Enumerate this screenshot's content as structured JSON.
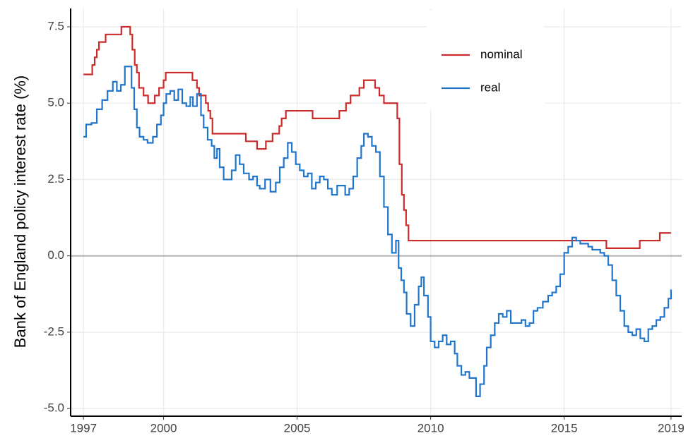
{
  "chart_data": {
    "type": "line",
    "step": true,
    "y_label": "Bank of England policy interest rate (%)",
    "xlim": [
      1996.52,
      2019.4
    ],
    "xticks": [
      1997,
      2000,
      2005,
      2010,
      2015,
      2019
    ],
    "ylim": [
      -5.25,
      8.1
    ],
    "yticks": [
      {
        "value": -5,
        "label": "-5.0"
      },
      {
        "value": -2.5,
        "label": "-2.5"
      },
      {
        "value": 0,
        "label": "0.0"
      },
      {
        "value": 2.5,
        "label": "2.5"
      },
      {
        "value": 5,
        "label": "5.0"
      },
      {
        "value": 7.5,
        "label": "7.5"
      }
    ],
    "grid": true,
    "reference_line": 0,
    "legend": "top-right",
    "series": [
      {
        "name": "nominal",
        "color": "#cc2b2b",
        "x": [
          1997.0,
          1997.33,
          1997.42,
          1997.5,
          1997.58,
          1997.83,
          1998.42,
          1998.75,
          1998.83,
          1998.92,
          1999.0,
          1999.08,
          1999.25,
          1999.42,
          1999.67,
          1999.83,
          2000.0,
          2000.08,
          2001.08,
          2001.25,
          2001.33,
          2001.58,
          2001.67,
          2001.75,
          2001.83,
          2003.08,
          2003.5,
          2003.83,
          2004.08,
          2004.33,
          2004.42,
          2004.58,
          2005.58,
          2006.58,
          2006.83,
          2007.0,
          2007.33,
          2007.5,
          2007.92,
          2008.08,
          2008.25,
          2008.75,
          2008.83,
          2008.92,
          2009.0,
          2009.08,
          2009.17,
          2016.58,
          2017.83,
          2018.58,
          2019.0
        ],
        "values": [
          5.94,
          6.25,
          6.5,
          6.75,
          7.0,
          7.25,
          7.5,
          7.25,
          6.75,
          6.25,
          6.0,
          5.5,
          5.25,
          5.0,
          5.25,
          5.5,
          5.75,
          6.0,
          5.75,
          5.5,
          5.25,
          5.0,
          4.75,
          4.5,
          4.0,
          3.75,
          3.5,
          3.75,
          4.0,
          4.25,
          4.5,
          4.75,
          4.5,
          4.75,
          5.0,
          5.25,
          5.5,
          5.75,
          5.5,
          5.25,
          5.0,
          4.5,
          3.0,
          2.0,
          1.5,
          1.0,
          0.5,
          0.25,
          0.5,
          0.75,
          0.75
        ]
      },
      {
        "name": "real",
        "color": "#2176cc",
        "x": [
          1997.0,
          1997.1,
          1997.3,
          1997.5,
          1997.7,
          1997.9,
          1998.1,
          1998.25,
          1998.4,
          1998.55,
          1998.7,
          1998.8,
          1998.9,
          1999.0,
          1999.1,
          1999.25,
          1999.4,
          1999.6,
          1999.75,
          1999.9,
          2000.0,
          2000.1,
          2000.25,
          2000.4,
          2000.55,
          2000.7,
          2000.85,
          2001.0,
          2001.1,
          2001.25,
          2001.4,
          2001.5,
          2001.65,
          2001.8,
          2001.9,
          2002.0,
          2002.1,
          2002.25,
          2002.4,
          2002.55,
          2002.7,
          2002.85,
          2003.0,
          2003.2,
          2003.35,
          2003.5,
          2003.6,
          2003.8,
          2004.0,
          2004.2,
          2004.35,
          2004.5,
          2004.65,
          2004.8,
          2004.95,
          2005.1,
          2005.25,
          2005.4,
          2005.55,
          2005.7,
          2005.85,
          2006.0,
          2006.15,
          2006.3,
          2006.5,
          2006.65,
          2006.8,
          2006.95,
          2007.1,
          2007.25,
          2007.4,
          2007.5,
          2007.65,
          2007.8,
          2007.95,
          2008.1,
          2008.25,
          2008.4,
          2008.55,
          2008.7,
          2008.8,
          2008.9,
          2009.0,
          2009.1,
          2009.25,
          2009.4,
          2009.55,
          2009.65,
          2009.75,
          2009.9,
          2010.0,
          2010.15,
          2010.3,
          2010.45,
          2010.6,
          2010.75,
          2010.9,
          2011.0,
          2011.15,
          2011.3,
          2011.45,
          2011.6,
          2011.7,
          2011.85,
          2012.0,
          2012.1,
          2012.25,
          2012.4,
          2012.55,
          2012.7,
          2012.85,
          2013.0,
          2013.2,
          2013.4,
          2013.55,
          2013.7,
          2013.85,
          2014.0,
          2014.2,
          2014.4,
          2014.55,
          2014.7,
          2014.85,
          2015.0,
          2015.15,
          2015.3,
          2015.45,
          2015.6,
          2015.75,
          2015.9,
          2016.05,
          2016.2,
          2016.35,
          2016.5,
          2016.65,
          2016.8,
          2016.95,
          2017.1,
          2017.25,
          2017.4,
          2017.55,
          2017.7,
          2017.85,
          2018.0,
          2018.15,
          2018.3,
          2018.45,
          2018.6,
          2018.75,
          2018.9,
          2019.0
        ],
        "values": [
          3.9,
          4.3,
          4.35,
          4.8,
          5.1,
          5.4,
          5.7,
          5.4,
          5.6,
          6.2,
          6.2,
          5.5,
          4.8,
          4.2,
          3.9,
          3.8,
          3.7,
          3.9,
          4.3,
          4.6,
          5.0,
          5.3,
          5.4,
          5.1,
          5.45,
          5.0,
          4.9,
          5.2,
          4.9,
          5.3,
          4.6,
          4.2,
          3.8,
          3.6,
          3.2,
          3.5,
          2.9,
          2.5,
          2.5,
          2.8,
          3.3,
          3.0,
          2.7,
          2.5,
          2.6,
          2.3,
          2.2,
          2.5,
          2.1,
          2.4,
          2.9,
          3.2,
          3.7,
          3.4,
          3.0,
          2.8,
          2.6,
          2.7,
          2.2,
          2.4,
          2.6,
          2.5,
          2.2,
          2.0,
          2.3,
          2.3,
          2.0,
          2.2,
          2.6,
          3.2,
          3.6,
          4.0,
          3.9,
          3.6,
          3.4,
          2.6,
          1.6,
          0.7,
          0.1,
          0.5,
          -0.4,
          -0.8,
          -1.2,
          -1.9,
          -2.3,
          -1.6,
          -1.0,
          -0.7,
          -1.3,
          -2.0,
          -2.8,
          -3.0,
          -2.8,
          -2.6,
          -2.9,
          -2.8,
          -3.2,
          -3.6,
          -3.9,
          -3.8,
          -4.0,
          -4.0,
          -4.6,
          -4.2,
          -3.6,
          -3.0,
          -2.6,
          -2.2,
          -1.9,
          -2.0,
          -1.8,
          -2.2,
          -2.2,
          -2.1,
          -2.3,
          -2.2,
          -1.8,
          -1.7,
          -1.5,
          -1.3,
          -1.2,
          -1.0,
          -0.6,
          0.1,
          0.3,
          0.6,
          0.5,
          0.4,
          0.4,
          0.3,
          0.2,
          0.2,
          0.1,
          0.0,
          -0.3,
          -0.8,
          -1.3,
          -1.8,
          -2.3,
          -2.5,
          -2.6,
          -2.4,
          -2.7,
          -2.8,
          -2.4,
          -2.3,
          -2.1,
          -2.0,
          -1.7,
          -1.4,
          -1.1
        ]
      }
    ]
  }
}
